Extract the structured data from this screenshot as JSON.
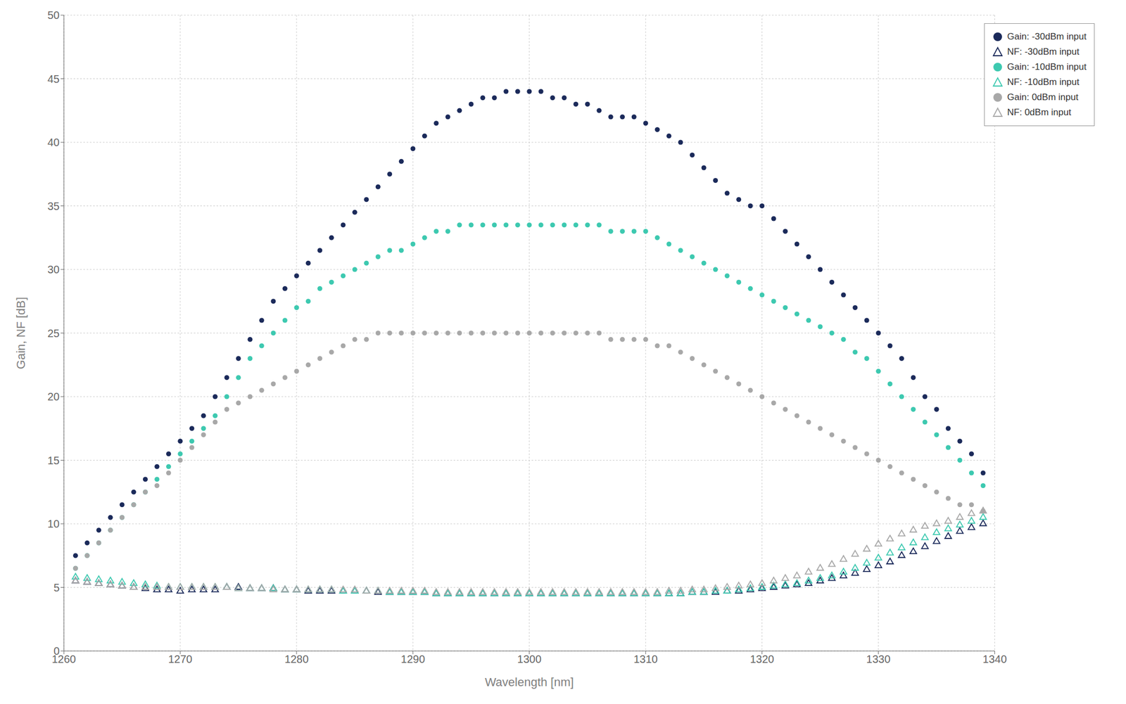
{
  "chart_data": {
    "type": "scatter",
    "xlabel": "Wavelength [nm]",
    "ylabel": "Gain, NF [dB]",
    "xlim": [
      1260,
      1340
    ],
    "ylim": [
      0,
      50
    ],
    "xticks": [
      1260,
      1270,
      1280,
      1290,
      1300,
      1310,
      1320,
      1330,
      1340
    ],
    "yticks": [
      0,
      5,
      10,
      15,
      20,
      25,
      30,
      35,
      40,
      45,
      50
    ],
    "grid": true,
    "legend": "upper right",
    "x": [
      1261,
      1262,
      1263,
      1264,
      1265,
      1266,
      1267,
      1268,
      1269,
      1270,
      1271,
      1272,
      1273,
      1274,
      1275,
      1276,
      1277,
      1278,
      1279,
      1280,
      1281,
      1282,
      1283,
      1284,
      1285,
      1286,
      1287,
      1288,
      1289,
      1290,
      1291,
      1292,
      1293,
      1294,
      1295,
      1296,
      1297,
      1298,
      1299,
      1300,
      1301,
      1302,
      1303,
      1304,
      1305,
      1306,
      1307,
      1308,
      1309,
      1310,
      1311,
      1312,
      1313,
      1314,
      1315,
      1316,
      1317,
      1318,
      1319,
      1320,
      1321,
      1322,
      1323,
      1324,
      1325,
      1326,
      1327,
      1328,
      1329,
      1330,
      1331,
      1332,
      1333,
      1334,
      1335,
      1336,
      1337,
      1338,
      1339
    ],
    "series": [
      {
        "name": "Gain: -30dBm input",
        "color": "#1b2a5a",
        "marker": "circle",
        "values": [
          7.5,
          8.5,
          9.5,
          10.5,
          11.5,
          12.5,
          13.5,
          14.5,
          15.5,
          16.5,
          17.5,
          18.5,
          20.0,
          21.5,
          23.0,
          24.5,
          26.0,
          27.5,
          28.5,
          29.5,
          30.5,
          31.5,
          32.5,
          33.5,
          34.5,
          35.5,
          36.5,
          37.5,
          38.5,
          39.5,
          40.5,
          41.5,
          42.0,
          42.5,
          43.0,
          43.5,
          43.5,
          44.0,
          44.0,
          44.0,
          44.0,
          43.5,
          43.5,
          43.0,
          43.0,
          42.5,
          42.0,
          42.0,
          42.0,
          41.5,
          41.0,
          40.5,
          40.0,
          39.0,
          38.0,
          37.0,
          36.0,
          35.5,
          35.0,
          35.0,
          34.0,
          33.0,
          32.0,
          31.0,
          30.0,
          29.0,
          28.0,
          27.0,
          26.0,
          25.0,
          24.0,
          23.0,
          21.5,
          20.0,
          19.0,
          17.5,
          16.5,
          15.5,
          14.0
        ]
      },
      {
        "name": "NF: -30dBm input",
        "color": "#1b2a5a",
        "marker": "triangle",
        "values": [
          5.5,
          5.4,
          5.3,
          5.2,
          5.1,
          5.0,
          4.9,
          4.8,
          4.8,
          4.7,
          4.8,
          4.8,
          4.8,
          5.0,
          5.0,
          4.9,
          4.9,
          4.9,
          4.8,
          4.8,
          4.7,
          4.7,
          4.7,
          4.7,
          4.7,
          4.7,
          4.6,
          4.6,
          4.6,
          4.6,
          4.6,
          4.5,
          4.5,
          4.5,
          4.5,
          4.5,
          4.5,
          4.5,
          4.5,
          4.5,
          4.5,
          4.5,
          4.5,
          4.5,
          4.5,
          4.5,
          4.5,
          4.5,
          4.5,
          4.5,
          4.5,
          4.5,
          4.5,
          4.6,
          4.6,
          4.6,
          4.7,
          4.7,
          4.8,
          4.9,
          5.0,
          5.1,
          5.2,
          5.3,
          5.5,
          5.7,
          5.9,
          6.1,
          6.4,
          6.7,
          7.0,
          7.5,
          7.8,
          8.2,
          8.6,
          9.0,
          9.4,
          9.7,
          10.0
        ]
      },
      {
        "name": "Gain: -10dBm input",
        "color": "#3dc9b0",
        "marker": "circle",
        "values": [
          6.5,
          7.5,
          8.5,
          9.5,
          10.5,
          11.5,
          12.5,
          13.5,
          14.5,
          15.5,
          16.5,
          17.5,
          18.5,
          20.0,
          21.5,
          23.0,
          24.0,
          25.0,
          26.0,
          27.0,
          27.5,
          28.5,
          29.0,
          29.5,
          30.0,
          30.5,
          31.0,
          31.5,
          31.5,
          32.0,
          32.5,
          33.0,
          33.0,
          33.5,
          33.5,
          33.5,
          33.5,
          33.5,
          33.5,
          33.5,
          33.5,
          33.5,
          33.5,
          33.5,
          33.5,
          33.5,
          33.0,
          33.0,
          33.0,
          33.0,
          32.5,
          32.0,
          31.5,
          31.0,
          30.5,
          30.0,
          29.5,
          29.0,
          28.5,
          28.0,
          27.5,
          27.0,
          26.5,
          26.0,
          25.5,
          25.0,
          24.5,
          23.5,
          23.0,
          22.0,
          21.0,
          20.0,
          19.0,
          18.0,
          17.0,
          16.0,
          15.0,
          14.0,
          13.0
        ]
      },
      {
        "name": "NF: -10dBm input",
        "color": "#3dc9b0",
        "marker": "triangle",
        "values": [
          5.8,
          5.7,
          5.6,
          5.5,
          5.4,
          5.3,
          5.2,
          5.1,
          5.0,
          5.0,
          5.0,
          5.0,
          5.0,
          5.0,
          4.9,
          4.9,
          4.9,
          4.9,
          4.8,
          4.8,
          4.8,
          4.8,
          4.8,
          4.7,
          4.7,
          4.7,
          4.7,
          4.6,
          4.6,
          4.6,
          4.6,
          4.5,
          4.5,
          4.5,
          4.5,
          4.5,
          4.5,
          4.5,
          4.5,
          4.5,
          4.5,
          4.5,
          4.5,
          4.5,
          4.5,
          4.5,
          4.5,
          4.5,
          4.5,
          4.5,
          4.5,
          4.5,
          4.5,
          4.6,
          4.6,
          4.7,
          4.7,
          4.8,
          4.9,
          5.0,
          5.1,
          5.2,
          5.3,
          5.5,
          5.7,
          5.9,
          6.2,
          6.5,
          6.9,
          7.3,
          7.7,
          8.1,
          8.5,
          8.9,
          9.3,
          9.6,
          9.9,
          10.2,
          10.5
        ]
      },
      {
        "name": "Gain: 0dBm input",
        "color": "#a8a8a8",
        "marker": "circle",
        "values": [
          6.5,
          7.5,
          8.5,
          9.5,
          10.5,
          11.5,
          12.5,
          13.0,
          14.0,
          15.0,
          16.0,
          17.0,
          18.0,
          19.0,
          19.5,
          20.0,
          20.5,
          21.0,
          21.5,
          22.0,
          22.5,
          23.0,
          23.5,
          24.0,
          24.5,
          24.5,
          25.0,
          25.0,
          25.0,
          25.0,
          25.0,
          25.0,
          25.0,
          25.0,
          25.0,
          25.0,
          25.0,
          25.0,
          25.0,
          25.0,
          25.0,
          25.0,
          25.0,
          25.0,
          25.0,
          25.0,
          24.5,
          24.5,
          24.5,
          24.5,
          24.0,
          24.0,
          23.5,
          23.0,
          22.5,
          22.0,
          21.5,
          21.0,
          20.5,
          20.0,
          19.5,
          19.0,
          18.5,
          18.0,
          17.5,
          17.0,
          16.5,
          16.0,
          15.5,
          15.0,
          14.5,
          14.0,
          13.5,
          13.0,
          12.5,
          12.0,
          11.5,
          11.5,
          11.0
        ]
      },
      {
        "name": "NF: 0dBm input",
        "color": "#a8a8a8",
        "marker": "triangle",
        "values": [
          5.5,
          5.4,
          5.3,
          5.2,
          5.1,
          5.0,
          5.0,
          5.0,
          5.0,
          5.0,
          5.0,
          5.0,
          5.0,
          5.0,
          4.9,
          4.9,
          4.9,
          4.8,
          4.8,
          4.8,
          4.8,
          4.8,
          4.8,
          4.8,
          4.8,
          4.7,
          4.7,
          4.7,
          4.7,
          4.7,
          4.7,
          4.6,
          4.6,
          4.6,
          4.6,
          4.6,
          4.6,
          4.6,
          4.6,
          4.6,
          4.6,
          4.6,
          4.6,
          4.6,
          4.6,
          4.6,
          4.6,
          4.6,
          4.6,
          4.6,
          4.6,
          4.7,
          4.7,
          4.8,
          4.8,
          4.9,
          5.0,
          5.1,
          5.2,
          5.3,
          5.5,
          5.7,
          5.9,
          6.2,
          6.5,
          6.8,
          7.2,
          7.6,
          8.0,
          8.4,
          8.8,
          9.2,
          9.5,
          9.8,
          10.0,
          10.2,
          10.5,
          10.8,
          11.0
        ]
      }
    ]
  }
}
